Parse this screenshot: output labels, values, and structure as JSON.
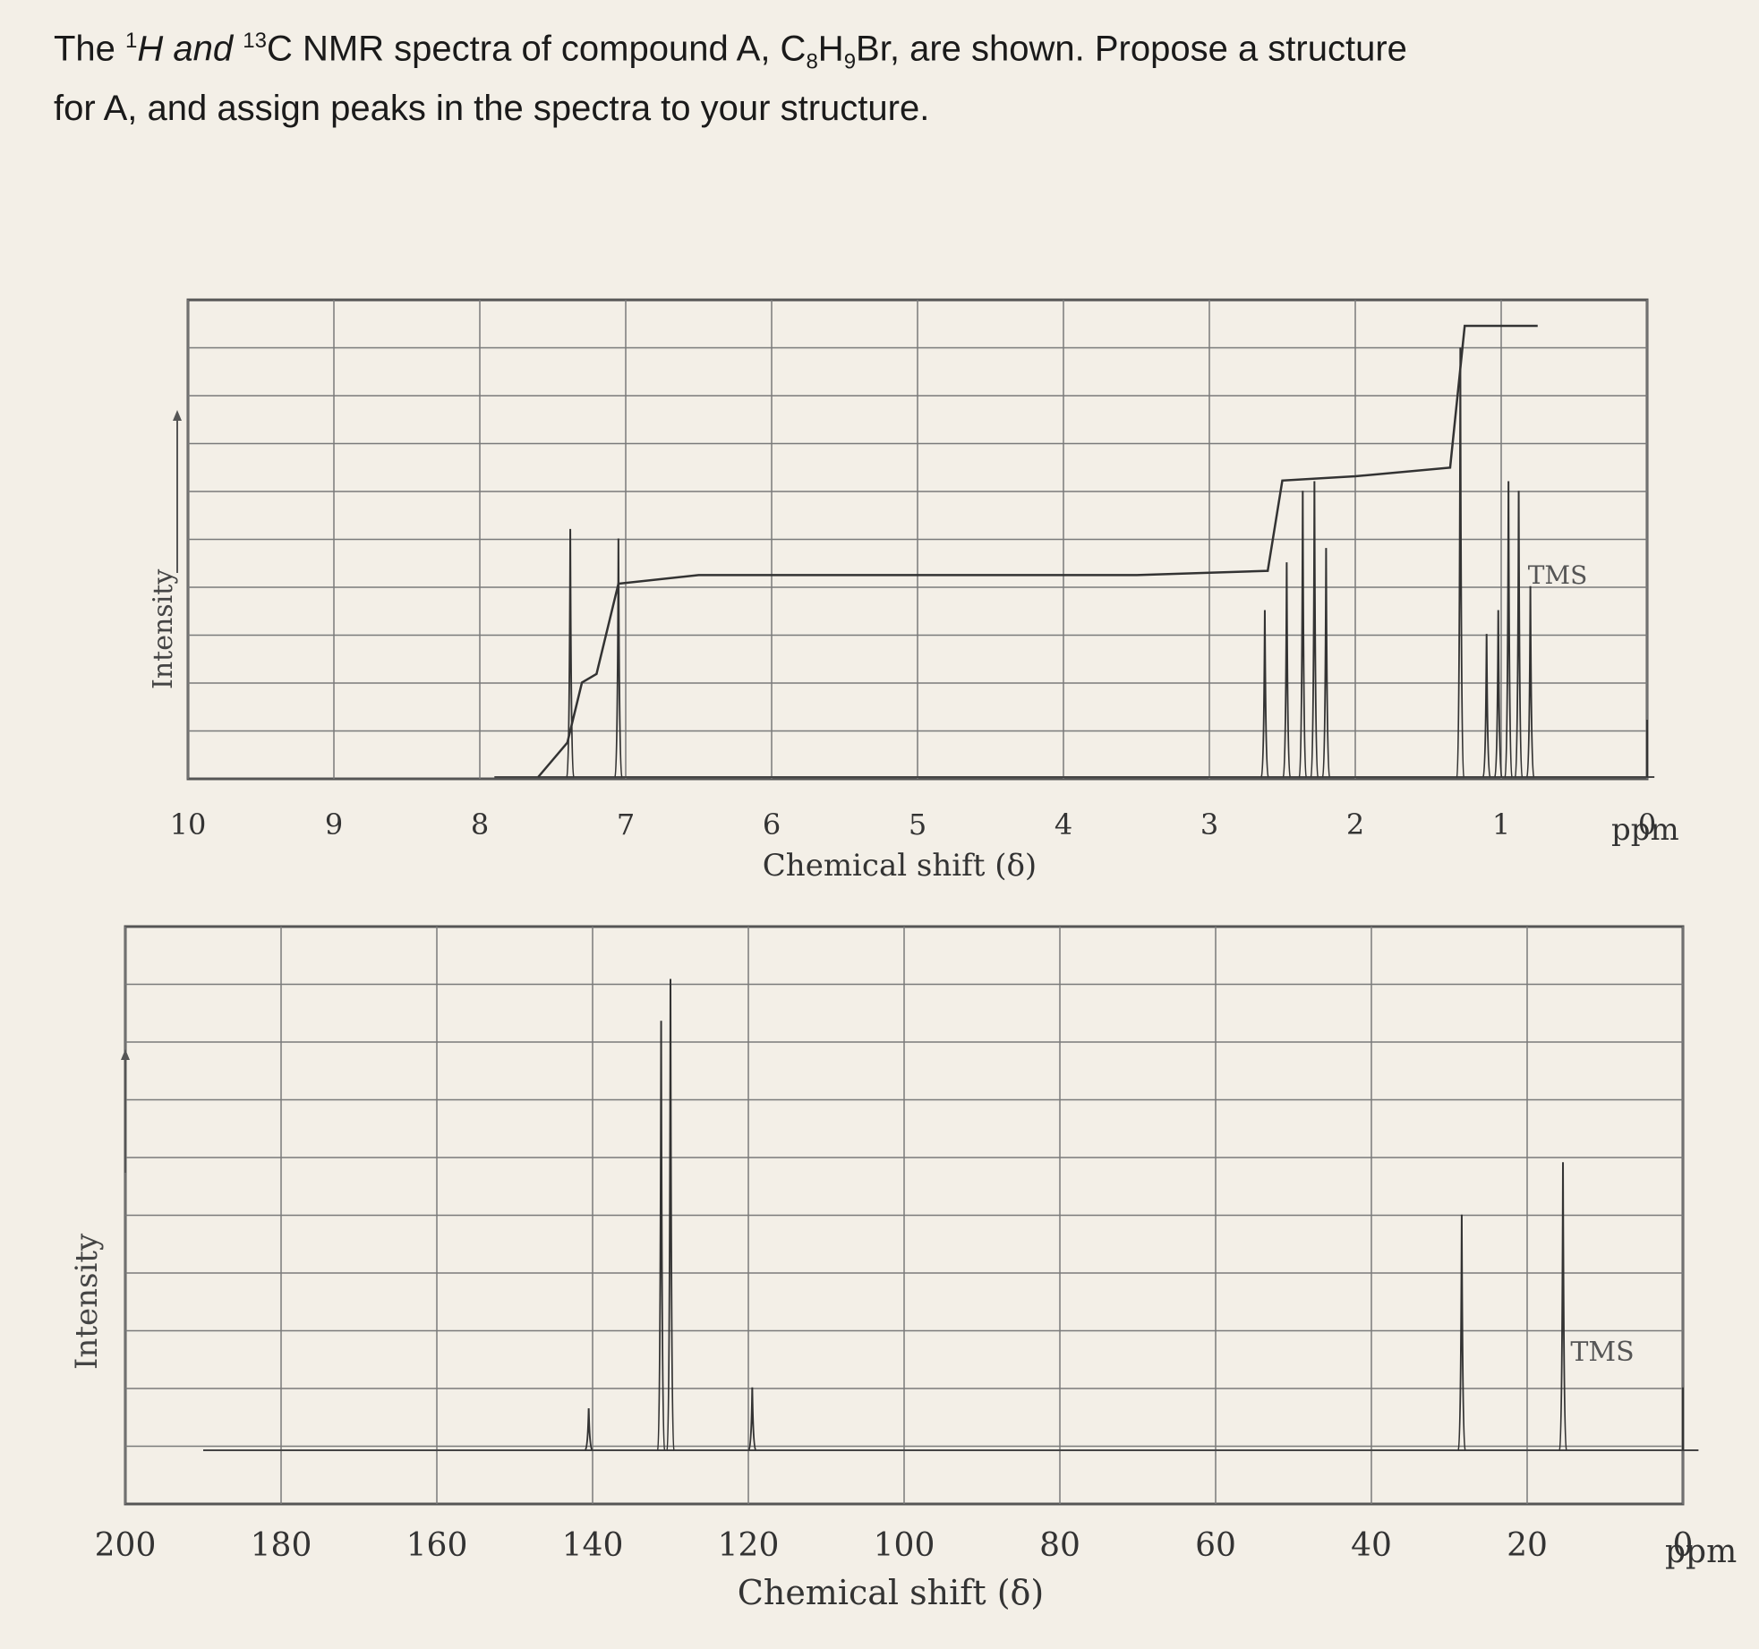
{
  "question": {
    "line1_pre": "The ",
    "sup1": "1",
    "h_label": "H and ",
    "sup2": "13",
    "c_label": "C NMR spectra of compound A, C",
    "sub1": "8",
    "h2": "H",
    "sub2": "9",
    "rest1": "Br, are shown. Propose a structure",
    "line2": "for A, and assign peaks in the spectra to your structure."
  },
  "chart_data": [
    {
      "type": "line",
      "spectrum": "1H NMR",
      "xlabel": "Chemical shift (δ)",
      "ylabel": "Intensity",
      "x_unit": "ppm",
      "xlim": [
        10,
        0
      ],
      "tick_labels": [
        "10",
        "9",
        "8",
        "7",
        "6",
        "5",
        "4",
        "3",
        "2",
        "1",
        "0"
      ],
      "peaks": [
        {
          "ppm": 7.38,
          "height": 0.52
        },
        {
          "ppm": 7.05,
          "height": 0.5
        },
        {
          "ppm": 2.62,
          "height": 0.35
        },
        {
          "ppm": 2.47,
          "height": 0.45
        },
        {
          "ppm": 2.36,
          "height": 0.6
        },
        {
          "ppm": 2.28,
          "height": 0.62
        },
        {
          "ppm": 2.2,
          "height": 0.48
        },
        {
          "ppm": 1.28,
          "height": 0.9
        },
        {
          "ppm": 1.1,
          "height": 0.3
        },
        {
          "ppm": 1.02,
          "height": 0.35
        },
        {
          "ppm": 0.95,
          "height": 0.62
        },
        {
          "ppm": 0.88,
          "height": 0.6
        },
        {
          "ppm": 0.8,
          "height": 0.4
        }
      ],
      "integral": [
        {
          "ppm": 7.6,
          "level": 0.0
        },
        {
          "ppm": 7.4,
          "level": 0.08
        },
        {
          "ppm": 7.3,
          "level": 0.22
        },
        {
          "ppm": 7.2,
          "level": 0.24
        },
        {
          "ppm": 7.05,
          "level": 0.45
        },
        {
          "ppm": 6.5,
          "level": 0.47
        },
        {
          "ppm": 3.5,
          "level": 0.47
        },
        {
          "ppm": 2.6,
          "level": 0.48
        },
        {
          "ppm": 2.5,
          "level": 0.69
        },
        {
          "ppm": 2.0,
          "level": 0.7
        },
        {
          "ppm": 1.35,
          "level": 0.72
        },
        {
          "ppm": 1.25,
          "level": 1.05
        },
        {
          "ppm": 0.75,
          "level": 1.05
        }
      ],
      "annotations": [
        "TMS"
      ],
      "tms_ppm": 0.0
    },
    {
      "type": "line",
      "spectrum": "13C NMR",
      "xlabel": "Chemical shift (δ)",
      "ylabel": "Intensity",
      "x_unit": "ppm",
      "xlim": [
        200,
        0
      ],
      "tick_labels": [
        "200",
        "180",
        "160",
        "140",
        "120",
        "100",
        "80",
        "60",
        "40",
        "20",
        "0"
      ],
      "peaks": [
        {
          "ppm": 140.5,
          "height": 0.08
        },
        {
          "ppm": 131.2,
          "height": 0.82
        },
        {
          "ppm": 130.0,
          "height": 0.9
        },
        {
          "ppm": 119.5,
          "height": 0.12
        },
        {
          "ppm": 28.4,
          "height": 0.45
        },
        {
          "ppm": 15.4,
          "height": 0.55
        }
      ],
      "annotations": [
        "TMS"
      ],
      "tms_ppm": 0.0
    }
  ]
}
